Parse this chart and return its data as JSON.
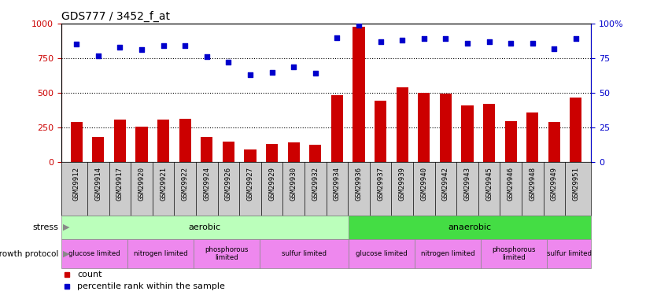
{
  "title": "GDS777 / 3452_f_at",
  "samples": [
    "GSM29912",
    "GSM29914",
    "GSM29917",
    "GSM29920",
    "GSM29921",
    "GSM29922",
    "GSM29924",
    "GSM29926",
    "GSM29927",
    "GSM29929",
    "GSM29930",
    "GSM29932",
    "GSM29934",
    "GSM29936",
    "GSM29937",
    "GSM29939",
    "GSM29940",
    "GSM29942",
    "GSM29943",
    "GSM29945",
    "GSM29946",
    "GSM29948",
    "GSM29949",
    "GSM29951"
  ],
  "counts": [
    290,
    185,
    305,
    255,
    310,
    315,
    185,
    150,
    95,
    130,
    145,
    125,
    485,
    980,
    445,
    540,
    500,
    495,
    410,
    420,
    295,
    360,
    290,
    465
  ],
  "percentiles": [
    85,
    77,
    83,
    81,
    84,
    84,
    76,
    72,
    63,
    65,
    69,
    64,
    90,
    99,
    87,
    88,
    89,
    89,
    86,
    87,
    86,
    86,
    82,
    89
  ],
  "ylim_left": [
    0,
    1000
  ],
  "ylim_right": [
    0,
    100
  ],
  "yticks_left": [
    0,
    250,
    500,
    750,
    1000
  ],
  "yticks_right": [
    0,
    25,
    50,
    75,
    100
  ],
  "bar_color": "#cc0000",
  "dot_color": "#0000cc",
  "stress_aerobic_label": "aerobic",
  "stress_anaerobic_label": "anaerobic",
  "stress_aerobic_color": "#bbffbb",
  "stress_anaerobic_color": "#44dd44",
  "growth_color": "#ee88ee",
  "growth_boundaries": [
    0,
    3,
    6,
    9,
    13,
    16,
    19,
    22,
    24
  ],
  "growth_labels": [
    "glucose limited",
    "nitrogen limited",
    "phosphorous\nlimited",
    "sulfur limited",
    "glucose limited",
    "nitrogen limited",
    "phosphorous\nlimited",
    "sulfur limited"
  ],
  "legend_count_label": "count",
  "legend_percentile_label": "percentile rank within the sample",
  "axis_color_left": "#cc0000",
  "axis_color_right": "#0000cc",
  "xtick_bg_color": "#cccccc",
  "background_color": "#ffffff",
  "n_aerobic": 13
}
